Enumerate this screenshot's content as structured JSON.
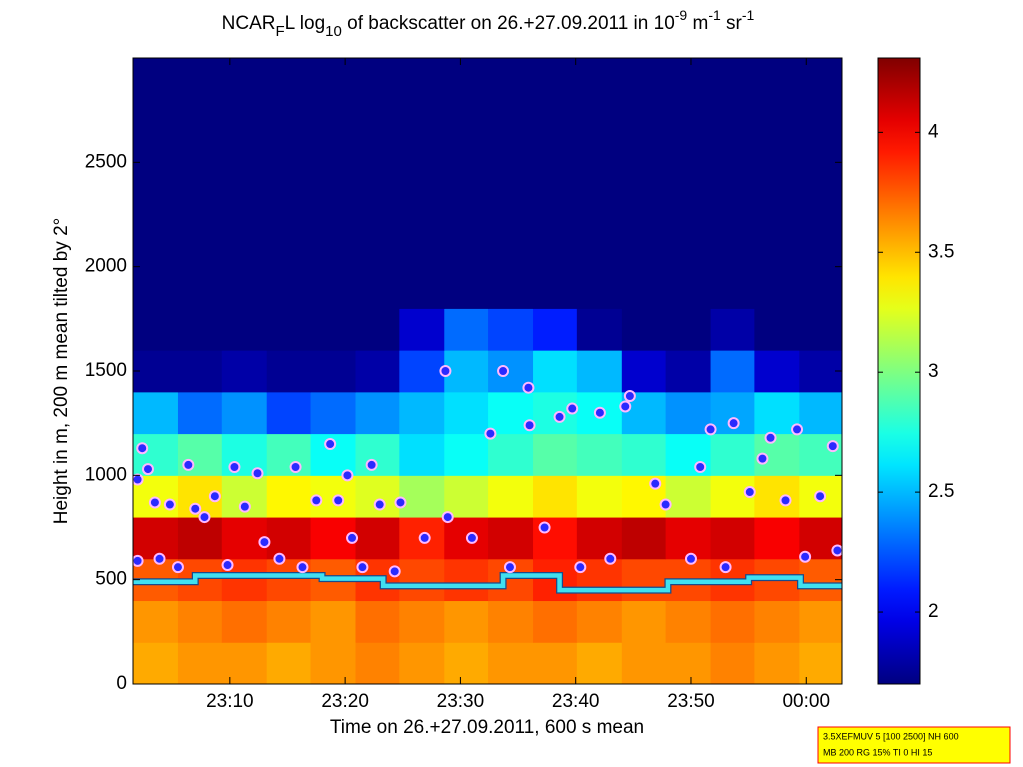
{
  "chart_data": {
    "type": "heatmap",
    "title_parts": [
      "NCAR",
      "F",
      "L log",
      "10",
      " of backscatter on 26.+27.09.2011 in 10",
      "-9",
      " m",
      "-1",
      " sr",
      "-1"
    ],
    "xlabel": "Time on 26.+27.09.2011, 600 s mean",
    "ylabel": "Height in m, 200 m mean tilted by 2°",
    "xlim": [
      1.6,
      63.1
    ],
    "xticks": [
      {
        "value": 10,
        "label": "23:10"
      },
      {
        "value": 20,
        "label": "23:20"
      },
      {
        "value": 30,
        "label": "23:30"
      },
      {
        "value": 40,
        "label": "23:40"
      },
      {
        "value": 50,
        "label": "23:50"
      },
      {
        "value": 60,
        "label": "00:00"
      }
    ],
    "ylim": [
      0,
      3000
    ],
    "yticks": [
      0,
      500,
      1000,
      1500,
      2000,
      2500
    ],
    "colormap": "jet",
    "clim": [
      1.7,
      4.31
    ],
    "cticks": [
      2,
      2.5,
      3,
      3.5,
      4
    ],
    "x_edges": [
      1.6,
      5.5,
      9.3,
      13.2,
      17,
      20.9,
      24.7,
      28.6,
      32.4,
      36.3,
      40.1,
      44,
      47.8,
      51.7,
      55.5,
      59.4,
      63.1
    ],
    "y_edges": [
      0,
      200,
      400,
      600,
      800,
      1000,
      1200,
      1400,
      1600,
      1800,
      2000,
      2200,
      2400,
      2600,
      2800,
      3000
    ],
    "values": [
      [
        3.55,
        3.6,
        3.6,
        3.55,
        3.6,
        3.65,
        3.6,
        3.55,
        3.6,
        3.6,
        3.55,
        3.6,
        3.6,
        3.65,
        3.6,
        3.55
      ],
      [
        3.6,
        3.65,
        3.7,
        3.65,
        3.6,
        3.7,
        3.65,
        3.6,
        3.65,
        3.7,
        3.65,
        3.6,
        3.65,
        3.7,
        3.65,
        3.6
      ],
      [
        3.75,
        3.8,
        3.85,
        3.8,
        3.75,
        3.85,
        3.8,
        3.85,
        3.8,
        3.9,
        3.85,
        3.8,
        3.8,
        3.85,
        3.8,
        3.75
      ],
      [
        4.1,
        4.15,
        4.05,
        4.1,
        4.0,
        4.1,
        3.9,
        4.05,
        4.1,
        3.95,
        4.1,
        4.15,
        4.05,
        4.1,
        4.0,
        4.1
      ],
      [
        3.3,
        3.4,
        3.2,
        3.35,
        3.3,
        3.25,
        3.1,
        3.2,
        3.3,
        3.4,
        3.3,
        3.35,
        3.2,
        3.3,
        3.4,
        3.3
      ],
      [
        2.8,
        2.9,
        2.75,
        2.85,
        2.7,
        2.8,
        2.6,
        2.7,
        2.8,
        2.9,
        2.85,
        2.8,
        2.7,
        2.8,
        2.9,
        2.85
      ],
      [
        2.5,
        2.3,
        2.4,
        2.2,
        2.3,
        2.4,
        2.5,
        2.6,
        2.7,
        2.75,
        2.7,
        2.5,
        2.4,
        2.45,
        2.6,
        2.5
      ],
      [
        1.75,
        1.75,
        1.8,
        1.75,
        1.75,
        1.8,
        2.2,
        2.5,
        2.4,
        2.6,
        2.5,
        1.9,
        1.8,
        2.3,
        1.9,
        1.8
      ],
      [
        1.7,
        1.7,
        1.7,
        1.7,
        1.7,
        1.7,
        1.9,
        2.3,
        2.2,
        2.1,
        1.75,
        1.7,
        1.7,
        1.8,
        1.7,
        1.7
      ],
      [
        1.7,
        1.7,
        1.7,
        1.7,
        1.7,
        1.7,
        1.7,
        1.7,
        1.7,
        1.7,
        1.7,
        1.7,
        1.7,
        1.7,
        1.7,
        1.7
      ],
      [
        1.7,
        1.7,
        1.7,
        1.7,
        1.7,
        1.7,
        1.7,
        1.7,
        1.7,
        1.7,
        1.7,
        1.7,
        1.7,
        1.7,
        1.7,
        1.7
      ],
      [
        1.7,
        1.7,
        1.7,
        1.7,
        1.7,
        1.7,
        1.7,
        1.7,
        1.7,
        1.7,
        1.7,
        1.7,
        1.7,
        1.7,
        1.7,
        1.7
      ],
      [
        1.7,
        1.7,
        1.7,
        1.7,
        1.7,
        1.7,
        1.7,
        1.7,
        1.7,
        1.7,
        1.7,
        1.7,
        1.7,
        1.7,
        1.7,
        1.7
      ],
      [
        1.7,
        1.7,
        1.7,
        1.7,
        1.7,
        1.7,
        1.7,
        1.7,
        1.7,
        1.7,
        1.7,
        1.7,
        1.7,
        1.7,
        1.7,
        1.7
      ],
      [
        1.7,
        1.7,
        1.7,
        1.7,
        1.7,
        1.7,
        1.7,
        1.7,
        1.7,
        1.7,
        1.7,
        1.7,
        1.7,
        1.7,
        1.7,
        1.7
      ]
    ],
    "scatter": {
      "color": "#2a2aff",
      "edge_color": "#ffb8ff",
      "x": [
        2.0,
        2.4,
        2.0,
        2.9,
        3.5,
        3.9,
        4.8,
        5.5,
        6.4,
        7.0,
        7.8,
        8.7,
        9.8,
        10.4,
        11.3,
        12.4,
        13.0,
        14.3,
        15.7,
        16.3,
        17.5,
        18.7,
        19.4,
        20.2,
        20.6,
        21.5,
        22.3,
        23.0,
        24.3,
        24.8,
        26.9,
        28.7,
        28.9,
        31.0,
        32.6,
        33.7,
        34.3,
        35.9,
        36.0,
        37.3,
        38.6,
        39.7,
        40.4,
        42.1,
        43.0,
        44.3,
        44.7,
        46.9,
        47.8,
        50.0,
        50.8,
        51.7,
        53.0,
        53.7,
        55.1,
        56.2,
        56.9,
        58.2,
        59.2,
        59.9,
        61.2,
        62.3,
        62.7
      ],
      "y": [
        980,
        1130,
        590,
        1030,
        870,
        600,
        860,
        560,
        1050,
        840,
        800,
        900,
        570,
        1040,
        850,
        1010,
        680,
        600,
        1040,
        560,
        880,
        1150,
        880,
        1000,
        700,
        560,
        1050,
        860,
        540,
        870,
        700,
        1500,
        800,
        700,
        1200,
        1500,
        560,
        1420,
        1240,
        750,
        1280,
        1320,
        560,
        1300,
        600,
        1330,
        1380,
        960,
        860,
        600,
        1040,
        1220,
        560,
        1250,
        920,
        1080,
        1180,
        880,
        1220,
        610,
        900,
        1140,
        640
      ]
    },
    "line": {
      "color": "#40e0f0",
      "edge_color": "#1a4a8a",
      "x": [
        1.6,
        7,
        7,
        18,
        18,
        23.3,
        23.3,
        33.7,
        33.7,
        38.6,
        38.6,
        48,
        48,
        55,
        55,
        59.5,
        59.5,
        63.1
      ],
      "y": [
        490,
        490,
        520,
        520,
        505,
        505,
        470,
        470,
        520,
        520,
        450,
        450,
        490,
        490,
        510,
        510,
        470,
        470
      ]
    },
    "annotation": [
      "3.5XEFMUV 5 [100 2500] NH 600",
      "MB 200 RG 15% TI 0 HI 15"
    ]
  }
}
